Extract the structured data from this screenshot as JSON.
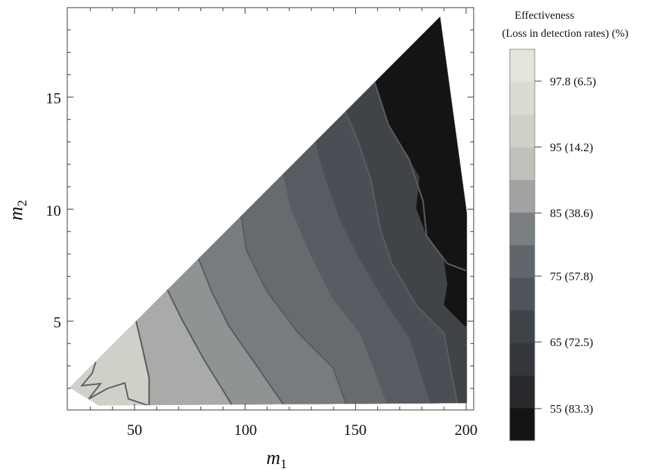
{
  "chart_data": {
    "type": "contour",
    "xlabel": {
      "main": "m",
      "sub": "1"
    },
    "ylabel": {
      "main": "m",
      "sub": "2"
    },
    "xlim": [
      21,
      203
    ],
    "ylim": [
      1.2,
      19.2
    ],
    "xticks": [
      "50",
      "100",
      "150",
      "200"
    ],
    "yticks": [
      "5",
      "10",
      "15"
    ],
    "region": [
      [
        22,
        2.2
      ],
      [
        188,
        18.8
      ],
      [
        200,
        10
      ],
      [
        200,
        1.5
      ],
      [
        35,
        1.4
      ]
    ],
    "colorbar": {
      "title_line1": "Effectiveness",
      "title_line2": "(Loss in detection rates) (%)",
      "levels": [
        {
          "color": "#131313"
        },
        {
          "color": "#27292c"
        },
        {
          "color": "#33373c"
        },
        {
          "color": "#3e4348"
        },
        {
          "color": "#4e545a"
        },
        {
          "color": "#60666b"
        },
        {
          "color": "#7a7f82"
        },
        {
          "color": "#a2a4a2"
        },
        {
          "color": "#bfc1ba"
        },
        {
          "color": "#cfd1c8"
        },
        {
          "color": "#dadbd1"
        },
        {
          "color": "#e3e4db"
        }
      ],
      "labels": [
        "97.8  (6.5)",
        "95 (14.2)",
        "85 (38.6)",
        "75 (57.8)",
        "65 (72.5)",
        "55 (83.3)"
      ],
      "label_values": [
        97.8,
        95,
        85,
        75,
        65,
        55
      ],
      "label_loss": [
        6.5,
        14.2,
        38.6,
        57.8,
        72.5,
        83.3
      ]
    },
    "contour_bands": [
      {
        "level": "band-11",
        "color": "#cfd1c8"
      },
      {
        "level": "band-10",
        "color": "#a9aba8"
      },
      {
        "level": "band-9",
        "color": "#8f9393"
      },
      {
        "level": "band-8",
        "color": "#777c7f"
      },
      {
        "level": "band-7",
        "color": "#666b70"
      },
      {
        "level": "band-6",
        "color": "#575c62"
      },
      {
        "level": "band-5",
        "color": "#4a4f55"
      },
      {
        "level": "band-4",
        "color": "#3f4449"
      },
      {
        "level": "band-3",
        "color": "#363a3f"
      },
      {
        "level": "band-2",
        "color": "#2d3034"
      },
      {
        "level": "band-1",
        "color": "#232528"
      },
      {
        "level": "band-0",
        "color": "#141414"
      }
    ]
  }
}
